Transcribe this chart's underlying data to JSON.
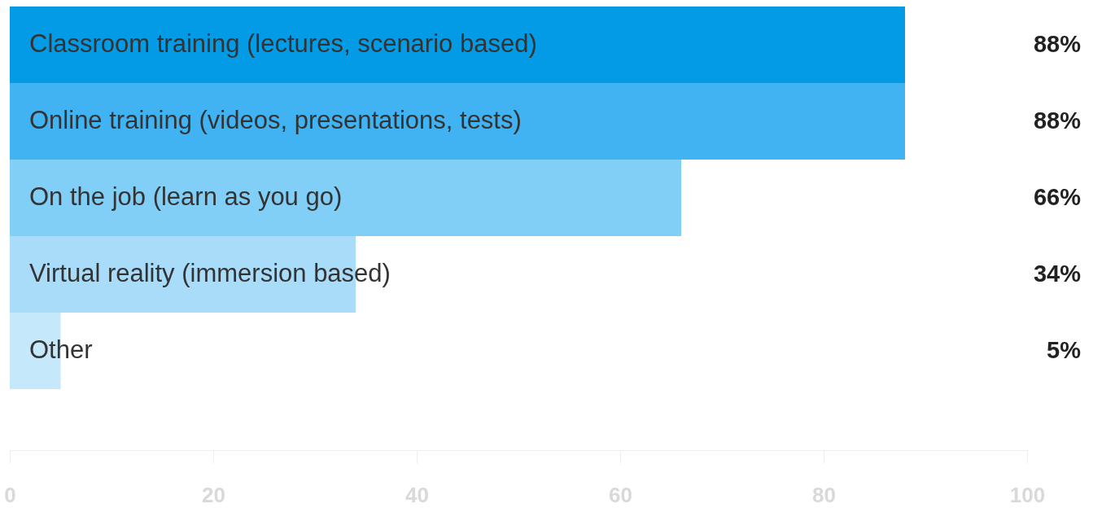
{
  "chart_data": {
    "type": "bar",
    "orientation": "horizontal",
    "categories": [
      "Classroom training (lectures, scenario based)",
      "Online training (videos, presentations, tests)",
      "On the job (learn as you go)",
      "Virtual reality (immersion based)",
      "Other"
    ],
    "values": [
      88,
      88,
      66,
      34,
      5
    ],
    "colors": [
      "#039be5",
      "#42b3f2",
      "#81cff7",
      "#a9dcf9",
      "#c5e8fb"
    ],
    "value_labels": [
      "88%",
      "88%",
      "66%",
      "34%",
      "5%"
    ],
    "xlim": [
      0,
      100
    ],
    "xticks": [
      0,
      20,
      40,
      60,
      80,
      100
    ]
  }
}
